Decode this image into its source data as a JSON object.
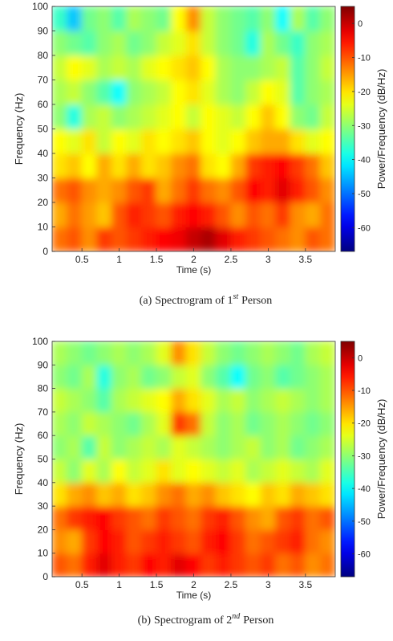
{
  "chart_data": [
    {
      "type": "heatmap",
      "colormap": "jet",
      "xlabel": "Time (s)",
      "ylabel": "Frequency (Hz)",
      "xlim": [
        0.1,
        3.9
      ],
      "ylim": [
        0,
        100
      ],
      "xticks": [
        0.5,
        1,
        1.5,
        2,
        2.5,
        3,
        3.5
      ],
      "yticks": [
        0,
        10,
        20,
        30,
        40,
        50,
        60,
        70,
        80,
        90,
        100
      ],
      "x": [
        0.2,
        0.4,
        0.6,
        0.8,
        1.0,
        1.2,
        1.4,
        1.6,
        1.8,
        2.0,
        2.2,
        2.4,
        2.6,
        2.8,
        3.0,
        3.2,
        3.4,
        3.6,
        3.8
      ],
      "y": [
        5,
        15,
        25,
        35,
        45,
        55,
        65,
        75,
        85,
        95
      ],
      "z": [
        [
          -12,
          -10,
          -14,
          -8,
          -10,
          -8,
          -6,
          -4,
          -3,
          0,
          2,
          -2,
          -6,
          -8,
          -10,
          -12,
          -14,
          -10,
          -12
        ],
        [
          -16,
          -12,
          -15,
          -18,
          -10,
          -6,
          -8,
          -10,
          -6,
          -4,
          -6,
          -10,
          -14,
          -10,
          -12,
          -8,
          -14,
          -16,
          -12
        ],
        [
          -12,
          -10,
          -14,
          -16,
          -14,
          -10,
          -8,
          -16,
          -12,
          -8,
          -12,
          -14,
          -10,
          -4,
          -6,
          -2,
          -6,
          -10,
          -14
        ],
        [
          -20,
          -18,
          -22,
          -16,
          -20,
          -16,
          -20,
          -18,
          -14,
          -12,
          -20,
          -22,
          -16,
          -8,
          -6,
          -4,
          -8,
          -12,
          -18
        ],
        [
          -22,
          -24,
          -20,
          -26,
          -22,
          -24,
          -20,
          -22,
          -20,
          -18,
          -22,
          -24,
          -22,
          -18,
          -16,
          -16,
          -20,
          -24,
          -22
        ],
        [
          -30,
          -38,
          -28,
          -26,
          -30,
          -28,
          -26,
          -24,
          -22,
          -26,
          -22,
          -24,
          -26,
          -22,
          -18,
          -22,
          -30,
          -32,
          -26
        ],
        [
          -28,
          -26,
          -30,
          -34,
          -40,
          -30,
          -28,
          -26,
          -22,
          -20,
          -24,
          -28,
          -30,
          -26,
          -22,
          -24,
          -34,
          -30,
          -28
        ],
        [
          -26,
          -22,
          -24,
          -28,
          -26,
          -28,
          -24,
          -22,
          -20,
          -18,
          -22,
          -28,
          -30,
          -30,
          -28,
          -26,
          -34,
          -30,
          -26
        ],
        [
          -30,
          -32,
          -34,
          -30,
          -28,
          -32,
          -30,
          -26,
          -24,
          -20,
          -26,
          -30,
          -32,
          -38,
          -28,
          -32,
          -36,
          -30,
          -28
        ],
        [
          -36,
          -44,
          -32,
          -30,
          -34,
          -28,
          -30,
          -32,
          -22,
          -14,
          -26,
          -30,
          -32,
          -34,
          -30,
          -40,
          -28,
          -34,
          -30
        ]
      ],
      "colorbar": {
        "label": "Power/Frequency (dB/Hz)",
        "clim": [
          -67,
          5
        ],
        "ticks": [
          0,
          -10,
          -20,
          -30,
          -40,
          -50,
          -60
        ]
      },
      "caption": {
        "label": "(a)",
        "text": "Spectrogram of 1",
        "superscript": "st",
        "suffix": "Person"
      }
    },
    {
      "type": "heatmap",
      "colormap": "jet",
      "xlabel": "Time (s)",
      "ylabel": "Frequency (Hz)",
      "xlim": [
        0.1,
        3.9
      ],
      "ylim": [
        0,
        100
      ],
      "xticks": [
        0.5,
        1,
        1.5,
        2,
        2.5,
        3,
        3.5
      ],
      "yticks": [
        0,
        10,
        20,
        30,
        40,
        50,
        60,
        70,
        80,
        90,
        100
      ],
      "x": [
        0.2,
        0.4,
        0.6,
        0.8,
        1.0,
        1.2,
        1.4,
        1.6,
        1.8,
        2.0,
        2.2,
        2.4,
        2.6,
        2.8,
        3.0,
        3.2,
        3.4,
        3.6,
        3.8
      ],
      "y": [
        5,
        15,
        25,
        35,
        45,
        55,
        65,
        75,
        85,
        95
      ],
      "z": [
        [
          -10,
          -12,
          -6,
          -2,
          -6,
          -8,
          -4,
          -6,
          -2,
          -4,
          -8,
          -6,
          -8,
          -10,
          -8,
          -12,
          -10,
          -14,
          -12
        ],
        [
          -14,
          -16,
          -8,
          -4,
          -6,
          -10,
          -8,
          -6,
          -8,
          -10,
          -6,
          -4,
          -8,
          -12,
          -10,
          -8,
          -6,
          -12,
          -14
        ],
        [
          -12,
          -8,
          -6,
          -4,
          -8,
          -10,
          -12,
          -8,
          -10,
          -12,
          -8,
          -6,
          -10,
          -14,
          -16,
          -10,
          -8,
          -12,
          -10
        ],
        [
          -20,
          -16,
          -14,
          -18,
          -16,
          -20,
          -18,
          -14,
          -12,
          -16,
          -14,
          -18,
          -20,
          -22,
          -18,
          -20,
          -16,
          -18,
          -20
        ],
        [
          -26,
          -30,
          -24,
          -28,
          -22,
          -26,
          -24,
          -20,
          -24,
          -22,
          -24,
          -26,
          -24,
          -28,
          -26,
          -24,
          -26,
          -28,
          -24
        ],
        [
          -30,
          -28,
          -34,
          -26,
          -30,
          -28,
          -26,
          -28,
          -24,
          -26,
          -28,
          -30,
          -28,
          -26,
          -30,
          -28,
          -32,
          -30,
          -28
        ],
        [
          -28,
          -30,
          -26,
          -28,
          -30,
          -32,
          -28,
          -24,
          -8,
          -12,
          -26,
          -30,
          -28,
          -32,
          -30,
          -28,
          -30,
          -32,
          -30
        ],
        [
          -26,
          -28,
          -30,
          -34,
          -28,
          -26,
          -24,
          -22,
          -16,
          -20,
          -24,
          -28,
          -26,
          -30,
          -28,
          -26,
          -28,
          -30,
          -28
        ],
        [
          -30,
          -32,
          -28,
          -38,
          -30,
          -28,
          -32,
          -30,
          -26,
          -24,
          -30,
          -34,
          -40,
          -32,
          -30,
          -34,
          -32,
          -30,
          -28
        ],
        [
          -28,
          -30,
          -32,
          -30,
          -28,
          -30,
          -28,
          -24,
          -14,
          -20,
          -26,
          -30,
          -32,
          -30,
          -28,
          -30,
          -32,
          -28,
          -26
        ]
      ],
      "colorbar": {
        "label": "Power/Frequency (dB/Hz)",
        "clim": [
          -67,
          5
        ],
        "ticks": [
          0,
          -10,
          -20,
          -30,
          -40,
          -50,
          -60
        ]
      },
      "caption": {
        "label": "(b)",
        "text": "Spectrogram of 2",
        "superscript": "nd",
        "suffix": "Person"
      }
    }
  ]
}
